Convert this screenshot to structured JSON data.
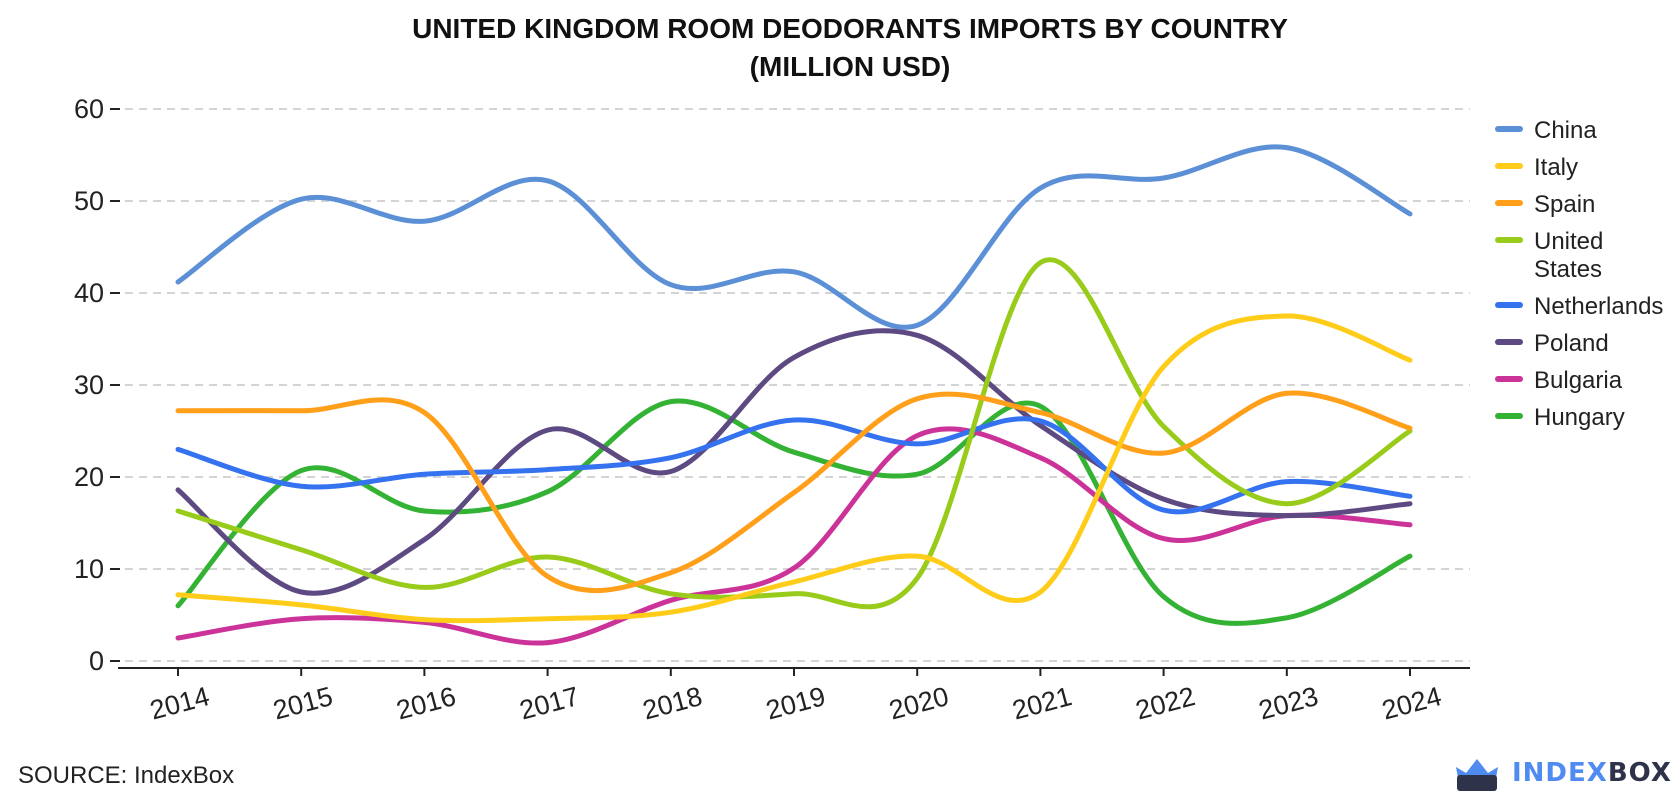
{
  "title_lines": [
    "UNITED KINGDOM ROOM DEODORANTS IMPORTS BY COUNTRY",
    "(MILLION USD)"
  ],
  "source": "SOURCE: IndexBox",
  "brand": {
    "part1": "INDEX",
    "part2": "BOX",
    "logo_icon": "crown-box-logo-icon",
    "color_primary": "#4f8bf0",
    "color_dark": "#2f3349"
  },
  "chart_data": {
    "type": "line",
    "title": "UNITED KINGDOM ROOM DEODORANTS IMPORTS BY COUNTRY (MILLION USD)",
    "xlabel": "",
    "ylabel": "",
    "x": [
      "2014",
      "2015",
      "2016",
      "2017",
      "2018",
      "2019",
      "2020",
      "2021",
      "2022",
      "2023",
      "2024"
    ],
    "ylim": [
      0,
      60
    ],
    "yticks": [
      0,
      10,
      20,
      30,
      40,
      50,
      60
    ],
    "grid": "horizontal dashed",
    "legend_position": "right",
    "series": [
      {
        "name": "China",
        "color": "#5b8fd6",
        "values": [
          41.2,
          50.2,
          47.8,
          52.2,
          40.9,
          42.3,
          36.5,
          51.4,
          52.5,
          55.8,
          48.6
        ]
      },
      {
        "name": "Italy",
        "color": "#ffcc1a",
        "values": [
          7.2,
          6.1,
          4.5,
          4.6,
          5.3,
          8.6,
          11.4,
          7.5,
          32.0,
          37.5,
          32.7
        ]
      },
      {
        "name": "Spain",
        "color": "#ff9f1a",
        "values": [
          27.2,
          27.2,
          27.0,
          9.2,
          9.6,
          18.3,
          28.5,
          27.0,
          22.6,
          29.1,
          25.3
        ]
      },
      {
        "name": "United States",
        "color": "#99cc1a",
        "values": [
          16.3,
          12.1,
          8.0,
          11.3,
          7.3,
          7.3,
          9.0,
          43.3,
          25.5,
          17.1,
          25.0
        ]
      },
      {
        "name": "Netherlands",
        "color": "#3572f0",
        "values": [
          23.0,
          19.0,
          20.3,
          20.8,
          22.1,
          26.2,
          23.6,
          26.1,
          16.4,
          19.5,
          17.9
        ]
      },
      {
        "name": "Poland",
        "color": "#5e4a82",
        "values": [
          18.6,
          7.5,
          13.2,
          25.1,
          20.6,
          33.0,
          35.4,
          25.6,
          17.6,
          15.8,
          17.1
        ]
      },
      {
        "name": "Bulgaria",
        "color": "#cc3399",
        "values": [
          2.5,
          4.6,
          4.2,
          2.0,
          6.6,
          10.1,
          24.5,
          22.1,
          13.3,
          15.8,
          14.8
        ]
      },
      {
        "name": "Hungary",
        "color": "#33b233",
        "values": [
          6.0,
          20.7,
          16.3,
          18.4,
          28.2,
          22.7,
          20.3,
          27.7,
          7.0,
          4.7,
          11.4
        ]
      }
    ]
  }
}
